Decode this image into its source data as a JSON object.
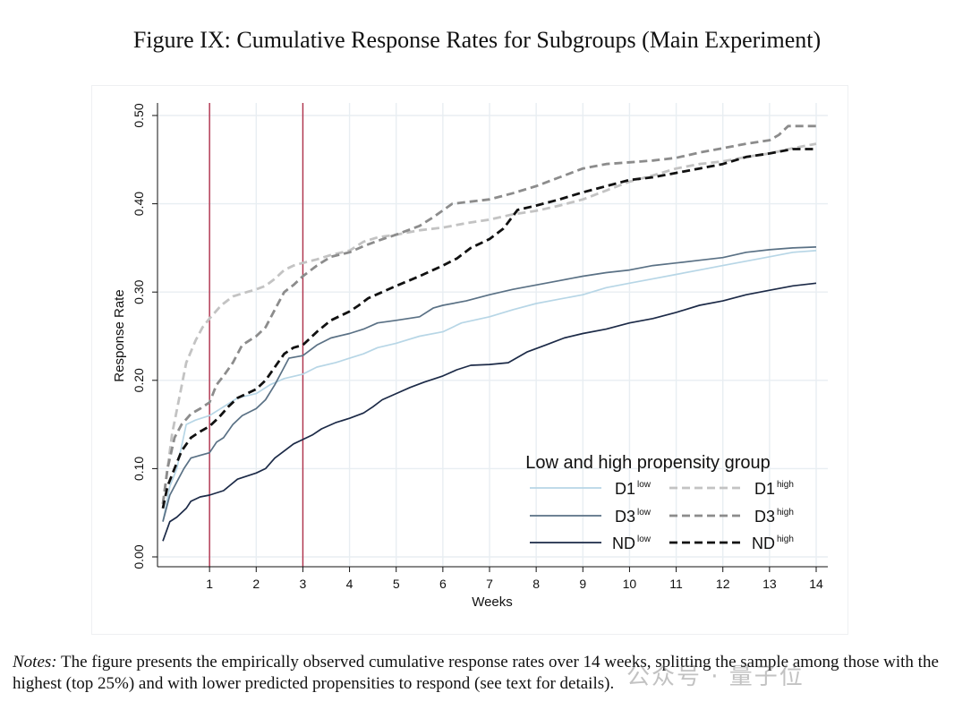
{
  "figure": {
    "title": "Figure IX: Cumulative Response Rates for Subgroups (Main Experiment)"
  },
  "notes": {
    "label": "Notes:",
    "text": " The figure presents the empirically observed cumulative response rates over 14 weeks, splitting the sample among those with the highest (top 25%) and with lower predicted propensities to respond (see text for details)."
  },
  "watermark": {
    "text": "公众号 · 量子位"
  },
  "chart_data": {
    "type": "line",
    "title": "",
    "xlabel": "Weeks",
    "ylabel": "Response Rate",
    "xlim": [
      0,
      14
    ],
    "ylim": [
      0,
      0.5
    ],
    "x_ticks": [
      "1",
      "2",
      "3",
      "4",
      "5",
      "6",
      "7",
      "8",
      "9",
      "10",
      "11",
      "12",
      "13",
      "14"
    ],
    "y_ticks": [
      "0.00",
      "0.10",
      "0.20",
      "0.30",
      "0.40",
      "0.50"
    ],
    "grid": true,
    "vertical_lines": [
      1,
      3
    ],
    "vertical_line_color": "#b0304a",
    "legend": {
      "title": "Low and high propensity group",
      "placement": "bottom-right"
    },
    "series": [
      {
        "label": "D1",
        "sup": "low",
        "color": "#b7d6e6",
        "dash": "solid",
        "points": [
          [
            0,
            0.04
          ],
          [
            0.15,
            0.08
          ],
          [
            0.3,
            0.1
          ],
          [
            0.5,
            0.15
          ],
          [
            0.7,
            0.155
          ],
          [
            1,
            0.16
          ],
          [
            1.3,
            0.17
          ],
          [
            1.6,
            0.18
          ],
          [
            2,
            0.185
          ],
          [
            2.3,
            0.195
          ],
          [
            2.6,
            0.202
          ],
          [
            3,
            0.207
          ],
          [
            3.3,
            0.215
          ],
          [
            3.7,
            0.22
          ],
          [
            4,
            0.225
          ],
          [
            4.3,
            0.23
          ],
          [
            4.6,
            0.237
          ],
          [
            5,
            0.242
          ],
          [
            5.5,
            0.25
          ],
          [
            6,
            0.255
          ],
          [
            6.4,
            0.265
          ],
          [
            7,
            0.272
          ],
          [
            7.5,
            0.28
          ],
          [
            8,
            0.287
          ],
          [
            8.5,
            0.292
          ],
          [
            9,
            0.297
          ],
          [
            9.5,
            0.305
          ],
          [
            10,
            0.31
          ],
          [
            10.5,
            0.315
          ],
          [
            11,
            0.32
          ],
          [
            11.5,
            0.325
          ],
          [
            12,
            0.33
          ],
          [
            12.5,
            0.335
          ],
          [
            13,
            0.34
          ],
          [
            13.5,
            0.345
          ],
          [
            14,
            0.347
          ]
        ]
      },
      {
        "label": "D1",
        "sup": "high",
        "color": "#c3c3c3",
        "dash": "dashed",
        "points": [
          [
            0,
            0.06
          ],
          [
            0.1,
            0.1
          ],
          [
            0.2,
            0.14
          ],
          [
            0.35,
            0.18
          ],
          [
            0.5,
            0.22
          ],
          [
            0.7,
            0.245
          ],
          [
            0.85,
            0.26
          ],
          [
            1,
            0.27
          ],
          [
            1.25,
            0.285
          ],
          [
            1.5,
            0.295
          ],
          [
            1.8,
            0.3
          ],
          [
            2,
            0.303
          ],
          [
            2.2,
            0.307
          ],
          [
            2.4,
            0.315
          ],
          [
            2.6,
            0.325
          ],
          [
            2.8,
            0.33
          ],
          [
            3,
            0.333
          ],
          [
            3.3,
            0.337
          ],
          [
            3.6,
            0.342
          ],
          [
            4,
            0.347
          ],
          [
            4.3,
            0.357
          ],
          [
            4.6,
            0.362
          ],
          [
            5,
            0.365
          ],
          [
            5.5,
            0.37
          ],
          [
            6,
            0.373
          ],
          [
            6.5,
            0.378
          ],
          [
            7,
            0.382
          ],
          [
            7.5,
            0.388
          ],
          [
            8,
            0.392
          ],
          [
            8.5,
            0.398
          ],
          [
            9,
            0.405
          ],
          [
            9.5,
            0.415
          ],
          [
            10,
            0.425
          ],
          [
            10.5,
            0.432
          ],
          [
            11,
            0.44
          ],
          [
            11.5,
            0.445
          ],
          [
            12,
            0.448
          ],
          [
            12.5,
            0.453
          ],
          [
            13,
            0.457
          ],
          [
            13.5,
            0.463
          ],
          [
            14,
            0.468
          ]
        ]
      },
      {
        "label": "D3",
        "sup": "low",
        "color": "#5a7185",
        "dash": "solid",
        "points": [
          [
            0,
            0.04
          ],
          [
            0.15,
            0.07
          ],
          [
            0.3,
            0.085
          ],
          [
            0.45,
            0.1
          ],
          [
            0.6,
            0.112
          ],
          [
            0.8,
            0.115
          ],
          [
            1,
            0.118
          ],
          [
            1.15,
            0.13
          ],
          [
            1.3,
            0.135
          ],
          [
            1.5,
            0.15
          ],
          [
            1.7,
            0.16
          ],
          [
            2,
            0.168
          ],
          [
            2.2,
            0.178
          ],
          [
            2.4,
            0.195
          ],
          [
            2.55,
            0.21
          ],
          [
            2.7,
            0.225
          ],
          [
            3,
            0.228
          ],
          [
            3.3,
            0.24
          ],
          [
            3.6,
            0.248
          ],
          [
            4,
            0.253
          ],
          [
            4.3,
            0.258
          ],
          [
            4.6,
            0.265
          ],
          [
            5,
            0.268
          ],
          [
            5.5,
            0.272
          ],
          [
            5.8,
            0.282
          ],
          [
            6,
            0.285
          ],
          [
            6.5,
            0.29
          ],
          [
            7,
            0.297
          ],
          [
            7.5,
            0.303
          ],
          [
            8,
            0.308
          ],
          [
            8.5,
            0.313
          ],
          [
            9,
            0.318
          ],
          [
            9.5,
            0.322
          ],
          [
            10,
            0.325
          ],
          [
            10.5,
            0.33
          ],
          [
            11,
            0.333
          ],
          [
            11.5,
            0.336
          ],
          [
            12,
            0.339
          ],
          [
            12.5,
            0.345
          ],
          [
            13,
            0.348
          ],
          [
            13.5,
            0.35
          ],
          [
            14,
            0.351
          ]
        ]
      },
      {
        "label": "D3",
        "sup": "high",
        "color": "#8c8c8c",
        "dash": "dashed",
        "points": [
          [
            0,
            0.06
          ],
          [
            0.1,
            0.1
          ],
          [
            0.25,
            0.135
          ],
          [
            0.4,
            0.15
          ],
          [
            0.6,
            0.162
          ],
          [
            0.8,
            0.168
          ],
          [
            1,
            0.175
          ],
          [
            1.15,
            0.195
          ],
          [
            1.3,
            0.205
          ],
          [
            1.5,
            0.22
          ],
          [
            1.7,
            0.24
          ],
          [
            2,
            0.25
          ],
          [
            2.2,
            0.26
          ],
          [
            2.4,
            0.28
          ],
          [
            2.6,
            0.3
          ],
          [
            2.8,
            0.308
          ],
          [
            3,
            0.318
          ],
          [
            3.3,
            0.33
          ],
          [
            3.6,
            0.34
          ],
          [
            4,
            0.345
          ],
          [
            4.3,
            0.352
          ],
          [
            4.6,
            0.358
          ],
          [
            5,
            0.365
          ],
          [
            5.5,
            0.375
          ],
          [
            5.8,
            0.385
          ],
          [
            6.2,
            0.4
          ],
          [
            7,
            0.405
          ],
          [
            7.5,
            0.412
          ],
          [
            8,
            0.42
          ],
          [
            8.5,
            0.43
          ],
          [
            9,
            0.44
          ],
          [
            9.5,
            0.445
          ],
          [
            10,
            0.447
          ],
          [
            10.5,
            0.449
          ],
          [
            11,
            0.452
          ],
          [
            11.5,
            0.458
          ],
          [
            12,
            0.463
          ],
          [
            12.5,
            0.468
          ],
          [
            13,
            0.472
          ],
          [
            13.2,
            0.478
          ],
          [
            13.4,
            0.488
          ],
          [
            14,
            0.488
          ]
        ]
      },
      {
        "label": "ND",
        "sup": "low",
        "color": "#1c2a47",
        "dash": "solid",
        "points": [
          [
            0,
            0.018
          ],
          [
            0.15,
            0.04
          ],
          [
            0.3,
            0.045
          ],
          [
            0.5,
            0.055
          ],
          [
            0.6,
            0.063
          ],
          [
            0.8,
            0.068
          ],
          [
            1,
            0.07
          ],
          [
            1.3,
            0.075
          ],
          [
            1.6,
            0.088
          ],
          [
            2,
            0.095
          ],
          [
            2.2,
            0.1
          ],
          [
            2.4,
            0.112
          ],
          [
            2.6,
            0.12
          ],
          [
            2.8,
            0.128
          ],
          [
            3,
            0.133
          ],
          [
            3.2,
            0.138
          ],
          [
            3.4,
            0.145
          ],
          [
            3.7,
            0.152
          ],
          [
            4,
            0.157
          ],
          [
            4.3,
            0.163
          ],
          [
            4.5,
            0.17
          ],
          [
            4.7,
            0.178
          ],
          [
            5,
            0.185
          ],
          [
            5.3,
            0.192
          ],
          [
            5.6,
            0.198
          ],
          [
            6,
            0.205
          ],
          [
            6.3,
            0.212
          ],
          [
            6.6,
            0.217
          ],
          [
            7,
            0.218
          ],
          [
            7.4,
            0.22
          ],
          [
            7.8,
            0.232
          ],
          [
            8.2,
            0.24
          ],
          [
            8.6,
            0.248
          ],
          [
            9,
            0.253
          ],
          [
            9.5,
            0.258
          ],
          [
            10,
            0.265
          ],
          [
            10.5,
            0.27
          ],
          [
            11,
            0.277
          ],
          [
            11.5,
            0.285
          ],
          [
            12,
            0.29
          ],
          [
            12.5,
            0.297
          ],
          [
            13,
            0.302
          ],
          [
            13.5,
            0.307
          ],
          [
            14,
            0.31
          ]
        ]
      },
      {
        "label": "ND",
        "sup": "high",
        "color": "#111111",
        "dash": "dashed",
        "points": [
          [
            0,
            0.055
          ],
          [
            0.1,
            0.08
          ],
          [
            0.25,
            0.1
          ],
          [
            0.4,
            0.12
          ],
          [
            0.6,
            0.135
          ],
          [
            0.8,
            0.142
          ],
          [
            1,
            0.148
          ],
          [
            1.2,
            0.158
          ],
          [
            1.4,
            0.17
          ],
          [
            1.6,
            0.18
          ],
          [
            2,
            0.19
          ],
          [
            2.2,
            0.2
          ],
          [
            2.4,
            0.215
          ],
          [
            2.6,
            0.23
          ],
          [
            2.8,
            0.237
          ],
          [
            3,
            0.24
          ],
          [
            3.3,
            0.255
          ],
          [
            3.6,
            0.268
          ],
          [
            4,
            0.278
          ],
          [
            4.2,
            0.285
          ],
          [
            4.4,
            0.293
          ],
          [
            4.7,
            0.3
          ],
          [
            5,
            0.307
          ],
          [
            5.5,
            0.318
          ],
          [
            6,
            0.33
          ],
          [
            6.3,
            0.338
          ],
          [
            6.6,
            0.35
          ],
          [
            7,
            0.36
          ],
          [
            7.3,
            0.372
          ],
          [
            7.6,
            0.393
          ],
          [
            8,
            0.398
          ],
          [
            8.5,
            0.405
          ],
          [
            9,
            0.413
          ],
          [
            9.5,
            0.42
          ],
          [
            10,
            0.427
          ],
          [
            10.5,
            0.43
          ],
          [
            11,
            0.435
          ],
          [
            11.5,
            0.44
          ],
          [
            12,
            0.445
          ],
          [
            12.5,
            0.453
          ],
          [
            13,
            0.457
          ],
          [
            13.5,
            0.462
          ],
          [
            14,
            0.462
          ]
        ]
      }
    ]
  }
}
